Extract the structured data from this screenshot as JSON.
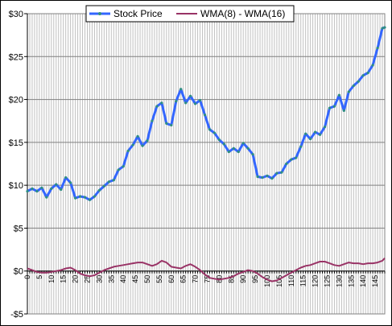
{
  "chart_data": {
    "type": "line",
    "title": "",
    "xlabel": "",
    "ylabel": "",
    "ylim": [
      -5,
      30
    ],
    "xlim": [
      0,
      149
    ],
    "y_ticks": [
      -5,
      0,
      5,
      10,
      15,
      20,
      25,
      30
    ],
    "y_tick_labels": [
      "-$5",
      "$0",
      "$5",
      "$10",
      "$15",
      "$20",
      "$25",
      "$30"
    ],
    "x_ticks": [
      0,
      5,
      10,
      15,
      20,
      25,
      30,
      35,
      40,
      45,
      50,
      55,
      60,
      65,
      70,
      75,
      80,
      85,
      90,
      95,
      100,
      105,
      110,
      115,
      120,
      125,
      130,
      135,
      140,
      145
    ],
    "grid": true,
    "legend_placement": "top-center",
    "series": [
      {
        "name": "Stock Price",
        "color": "#3366ff",
        "marker_color": "#2f8f7f",
        "x": [
          0,
          2,
          4,
          6,
          8,
          10,
          12,
          14,
          16,
          18,
          20,
          22,
          24,
          26,
          28,
          30,
          32,
          34,
          36,
          38,
          40,
          42,
          44,
          46,
          48,
          50,
          52,
          54,
          56,
          58,
          60,
          62,
          64,
          66,
          68,
          70,
          72,
          74,
          76,
          78,
          80,
          82,
          84,
          86,
          88,
          90,
          92,
          94,
          96,
          98,
          100,
          102,
          104,
          106,
          108,
          110,
          112,
          114,
          116,
          118,
          120,
          122,
          124,
          126,
          128,
          130,
          132,
          134,
          136,
          138,
          140,
          142,
          144,
          146,
          148,
          149
        ],
        "values": [
          9.3,
          9.6,
          9.3,
          9.7,
          8.6,
          9.6,
          10.1,
          9.5,
          10.9,
          10.3,
          8.5,
          8.7,
          8.6,
          8.3,
          8.7,
          9.4,
          9.9,
          10.4,
          10.6,
          11.8,
          12.2,
          14.0,
          14.7,
          15.7,
          14.6,
          15.2,
          17.5,
          19.2,
          19.6,
          17.2,
          17.0,
          19.8,
          21.2,
          19.6,
          20.4,
          19.5,
          19.9,
          18.2,
          16.5,
          16.1,
          15.3,
          14.8,
          13.9,
          14.3,
          13.9,
          14.9,
          14.3,
          13.6,
          11.0,
          10.9,
          11.1,
          10.8,
          11.4,
          11.5,
          12.5,
          13.0,
          13.2,
          14.5,
          16.0,
          15.4,
          16.2,
          15.9,
          16.8,
          19.0,
          19.2,
          20.5,
          18.7,
          20.9,
          21.6,
          22.1,
          22.8,
          23.1,
          24.0,
          26.0,
          28.3,
          28.4
        ]
      },
      {
        "name": "WMA(8) - WMA(16)",
        "color": "#993366",
        "x": [
          0,
          2,
          4,
          6,
          8,
          10,
          12,
          14,
          16,
          18,
          20,
          22,
          24,
          26,
          28,
          30,
          32,
          34,
          36,
          38,
          40,
          42,
          44,
          46,
          48,
          50,
          52,
          54,
          56,
          58,
          60,
          62,
          64,
          66,
          68,
          70,
          72,
          74,
          76,
          78,
          80,
          82,
          84,
          86,
          88,
          90,
          92,
          94,
          96,
          98,
          100,
          102,
          104,
          106,
          108,
          110,
          112,
          114,
          116,
          118,
          120,
          122,
          124,
          126,
          128,
          130,
          132,
          134,
          136,
          138,
          140,
          142,
          144,
          146,
          148,
          149
        ],
        "values": [
          0.3,
          0.1,
          -0.1,
          -0.2,
          -0.2,
          -0.1,
          0.0,
          0.1,
          0.3,
          0.4,
          0.1,
          -0.3,
          -0.5,
          -0.6,
          -0.5,
          -0.2,
          0.1,
          0.3,
          0.5,
          0.6,
          0.7,
          0.8,
          0.9,
          1.0,
          1.0,
          0.8,
          0.6,
          0.8,
          1.2,
          1.0,
          0.5,
          0.4,
          0.3,
          0.6,
          0.8,
          0.5,
          0.1,
          -0.4,
          -0.8,
          -0.9,
          -1.0,
          -0.9,
          -0.8,
          -0.6,
          -0.3,
          -0.1,
          0.1,
          0.0,
          -0.3,
          -0.7,
          -1.0,
          -1.2,
          -1.1,
          -0.8,
          -0.5,
          -0.2,
          0.1,
          0.4,
          0.6,
          0.7,
          0.9,
          1.1,
          1.1,
          0.9,
          0.7,
          0.6,
          0.8,
          1.0,
          0.9,
          0.9,
          0.8,
          0.9,
          0.9,
          1.0,
          1.2,
          1.5
        ]
      }
    ]
  }
}
